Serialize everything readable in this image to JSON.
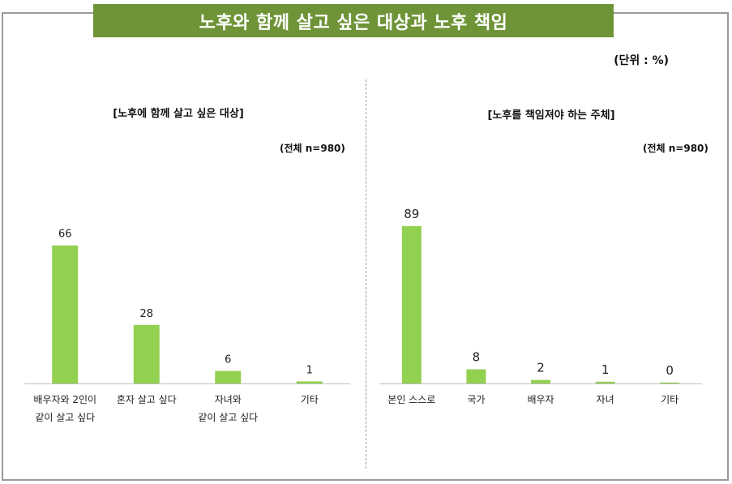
{
  "title": "노후와 함께 살고 싶은 대상과 노후 책임",
  "unit": "(단위 : %)",
  "colors": {
    "bar": "#92d050",
    "title_bg": "#6e9437",
    "axis": "#bfbfbf"
  },
  "chart_data": [
    {
      "type": "bar",
      "title": "[노후에 함께 살고 싶은 대상]",
      "base": "(전체 n=980)",
      "categories": [
        "배우자와 2인이\n같이 살고 싶다",
        "혼자 살고 싶다",
        "자녀와\n같이 살고 싶다",
        "기타"
      ],
      "values": [
        66,
        28,
        6,
        1
      ],
      "ylim": [
        0,
        100
      ],
      "grid": false
    },
    {
      "type": "bar",
      "title": "[노후를 책임져야 하는 주체]",
      "base": "(전체 n=980)",
      "categories": [
        "본인 스스로",
        "국가",
        "배우자",
        "자녀",
        "기타"
      ],
      "values": [
        89,
        8,
        2,
        1,
        0
      ],
      "ylim": [
        0,
        100
      ],
      "grid": false
    }
  ]
}
